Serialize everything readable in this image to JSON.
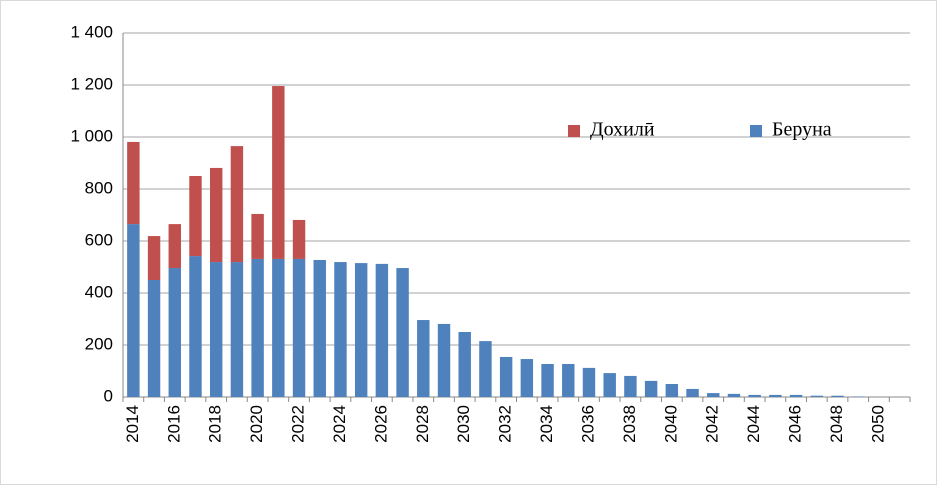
{
  "chart_data": {
    "type": "bar",
    "stacked": true,
    "categories": [
      "2014",
      null,
      "2016",
      null,
      "2018",
      null,
      "2020",
      null,
      "2022",
      null,
      "2024",
      null,
      "2026",
      null,
      "2028",
      null,
      "2030",
      null,
      "2032",
      null,
      "2034",
      null,
      "2036",
      null,
      "2038",
      null,
      "2040",
      null,
      "2042",
      null,
      "2044",
      null,
      "2046",
      null,
      "2048",
      null,
      "2050",
      null
    ],
    "series": [
      {
        "name": "Дохилӣ",
        "color": "#c0504d",
        "values": [
          316,
          169,
          169,
          308,
          362,
          446,
          173,
          665,
          150,
          0,
          0,
          0,
          0,
          0,
          0,
          0,
          0,
          0,
          0,
          0,
          0,
          0,
          0,
          0,
          0,
          0,
          0,
          0,
          0,
          0,
          0,
          0,
          0,
          0,
          0,
          0,
          0,
          0
        ]
      },
      {
        "name": "Беруна",
        "color": "#4f81bd",
        "values": [
          665,
          450,
          496,
          542,
          519,
          519,
          531,
          531,
          531,
          527,
          519,
          515,
          512,
          496,
          296,
          281,
          250,
          215,
          154,
          146,
          127,
          127,
          112,
          92,
          81,
          62,
          50,
          31,
          15,
          12,
          8,
          8,
          8,
          5,
          5,
          2,
          0,
          0
        ]
      }
    ],
    "ylim": [
      0,
      1400
    ],
    "yticks": [
      0,
      200,
      400,
      600,
      800,
      {
        "value": 1000,
        "label": "1 000"
      },
      {
        "value": 1200,
        "label": "1 200"
      },
      {
        "value": 1400,
        "label": "1 400"
      }
    ],
    "grid": true,
    "legend": "upper right"
  }
}
